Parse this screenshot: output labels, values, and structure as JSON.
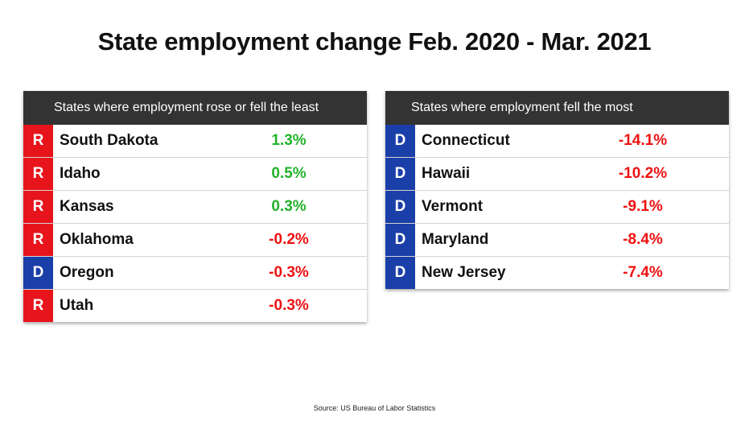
{
  "chart_data": {
    "type": "table",
    "title": "State employment change Feb. 2020 - Mar. 2021",
    "source": "Source: US Bureau of Labor Statistics",
    "colors": {
      "R": "#e8141b",
      "D": "#1b3fa8",
      "positive": "#22b22a",
      "negative": "#ee1111",
      "header": "#333333"
    },
    "tables": [
      {
        "header": "States where employment rose or fell the least",
        "rows": [
          {
            "party": "R",
            "state": "South Dakota",
            "change": "1.3%",
            "value": 1.3
          },
          {
            "party": "R",
            "state": "Idaho",
            "change": "0.5%",
            "value": 0.5
          },
          {
            "party": "R",
            "state": "Kansas",
            "change": "0.3%",
            "value": 0.3
          },
          {
            "party": "R",
            "state": "Oklahoma",
            "change": "-0.2%",
            "value": -0.2
          },
          {
            "party": "D",
            "state": "Oregon",
            "change": "-0.3%",
            "value": -0.3
          },
          {
            "party": "R",
            "state": "Utah",
            "change": "-0.3%",
            "value": -0.3
          }
        ]
      },
      {
        "header": "States where employment fell the most",
        "rows": [
          {
            "party": "D",
            "state": "Connecticut",
            "change": "-14.1%",
            "value": -14.1
          },
          {
            "party": "D",
            "state": "Hawaii",
            "change": "-10.2%",
            "value": -10.2
          },
          {
            "party": "D",
            "state": "Vermont",
            "change": "-9.1%",
            "value": -9.1
          },
          {
            "party": "D",
            "state": "Maryland",
            "change": "-8.4%",
            "value": -8.4
          },
          {
            "party": "D",
            "state": "New Jersey",
            "change": "-7.4%",
            "value": -7.4
          }
        ]
      }
    ]
  }
}
